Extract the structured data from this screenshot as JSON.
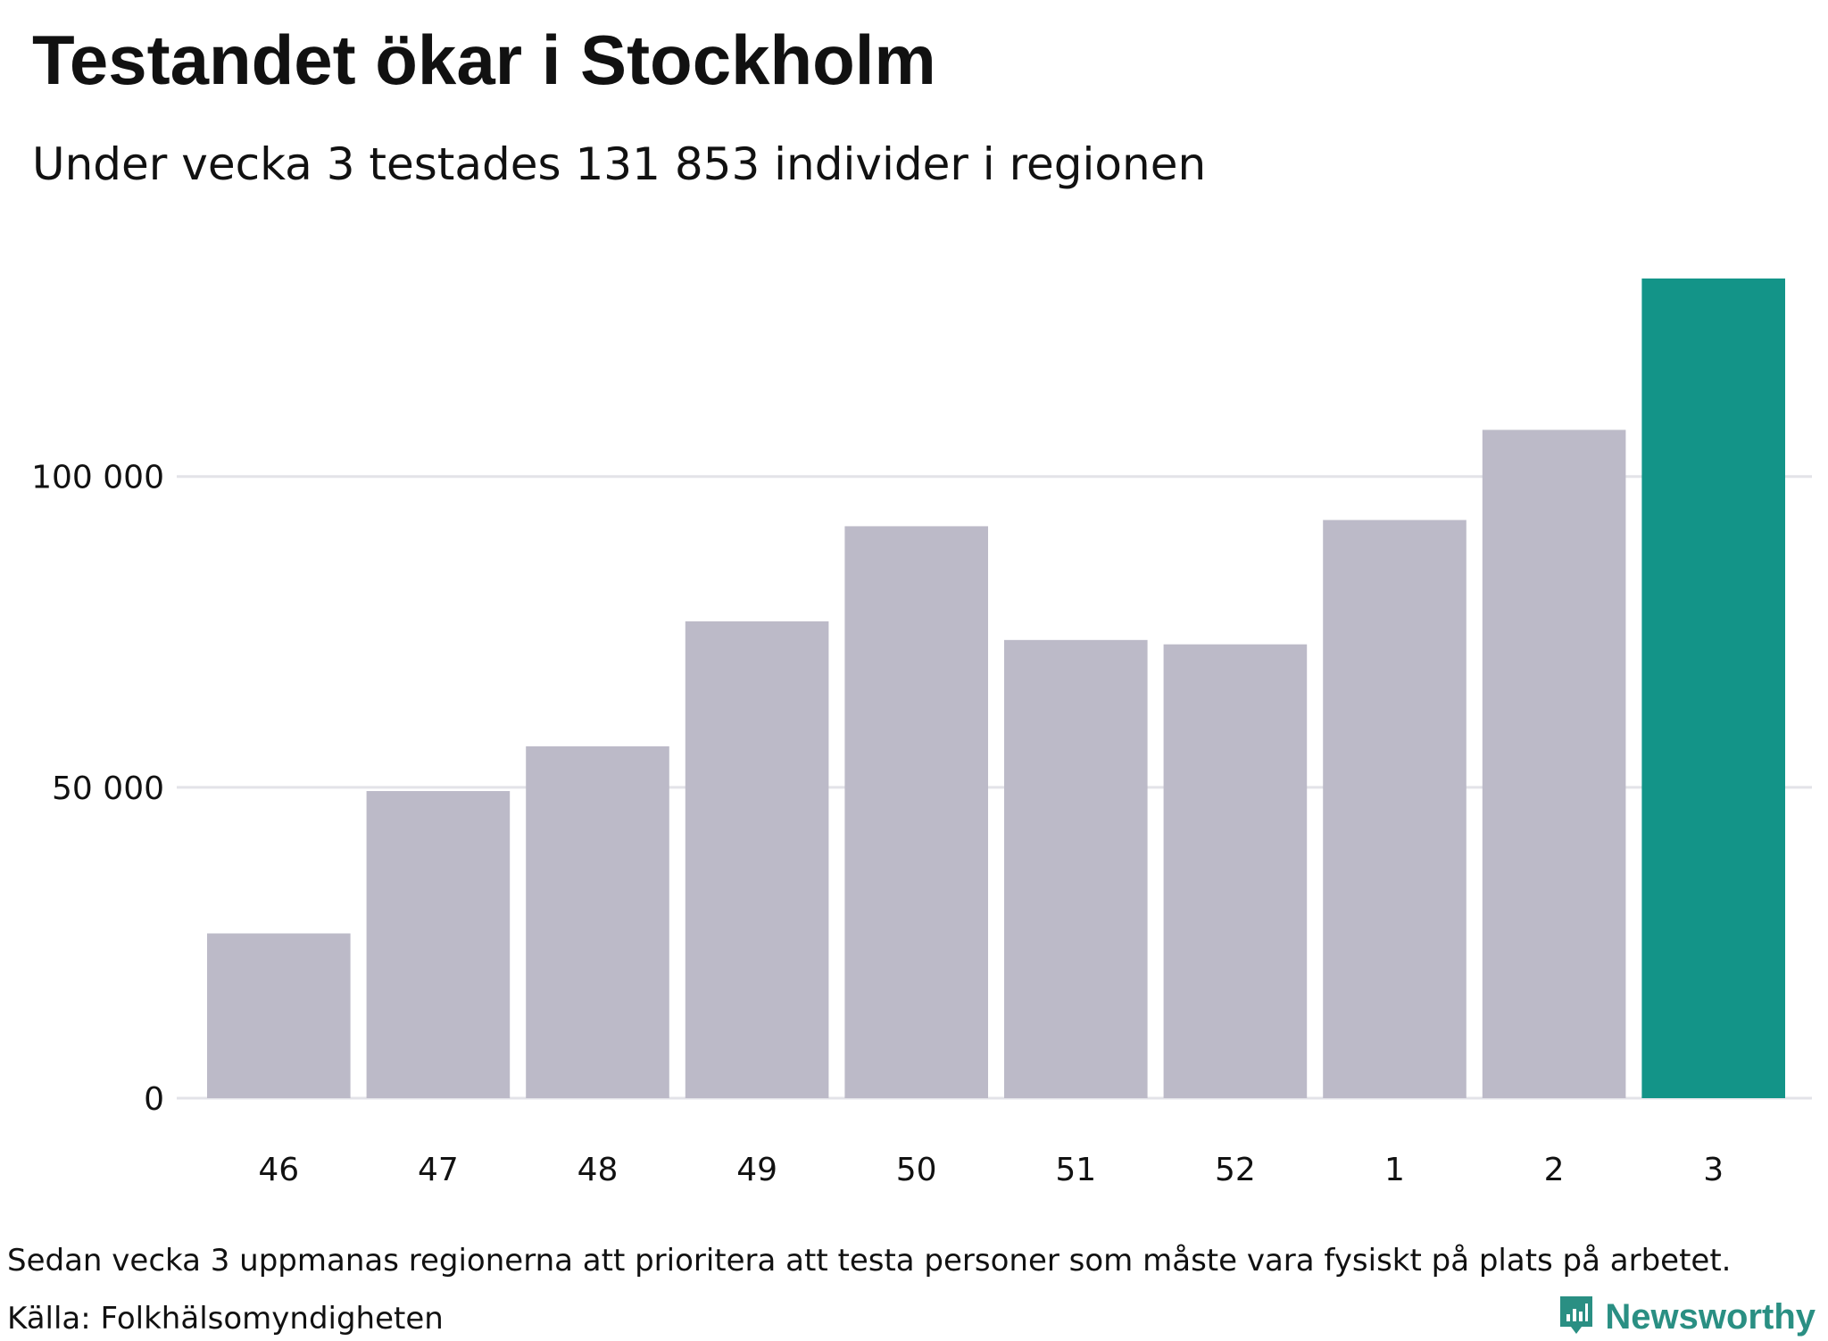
{
  "title": "Testandet ökar i Stockholm",
  "subtitle": "Under vecka 3 testades 131 853 individer i regionen",
  "footnote": "Sedan vecka 3 uppmanas regionerna att prioritera att testa personer som måste vara fysiskt på plats på arbetet.",
  "source": "Källa: Folkhälsomyndigheten",
  "brand": {
    "name": "Newsworthy",
    "icon": "newsworthy-logo-icon",
    "color": "#2a8f83"
  },
  "chart_data": {
    "type": "bar",
    "categories": [
      "46",
      "47",
      "48",
      "49",
      "50",
      "51",
      "52",
      "1",
      "2",
      "3"
    ],
    "values": [
      26500,
      49400,
      56600,
      76700,
      92000,
      73700,
      73000,
      93000,
      107500,
      131853
    ],
    "ylim": [
      0,
      135000
    ],
    "yticks": [
      {
        "value": 0,
        "label": "0"
      },
      {
        "value": 50000,
        "label": "50 000"
      },
      {
        "value": 100000,
        "label": "100 000"
      }
    ],
    "grid": true,
    "colors": {
      "default": "#bcbac8",
      "highlight": "#139488",
      "grid": "#e3e3e8"
    },
    "highlight_index": 9
  }
}
